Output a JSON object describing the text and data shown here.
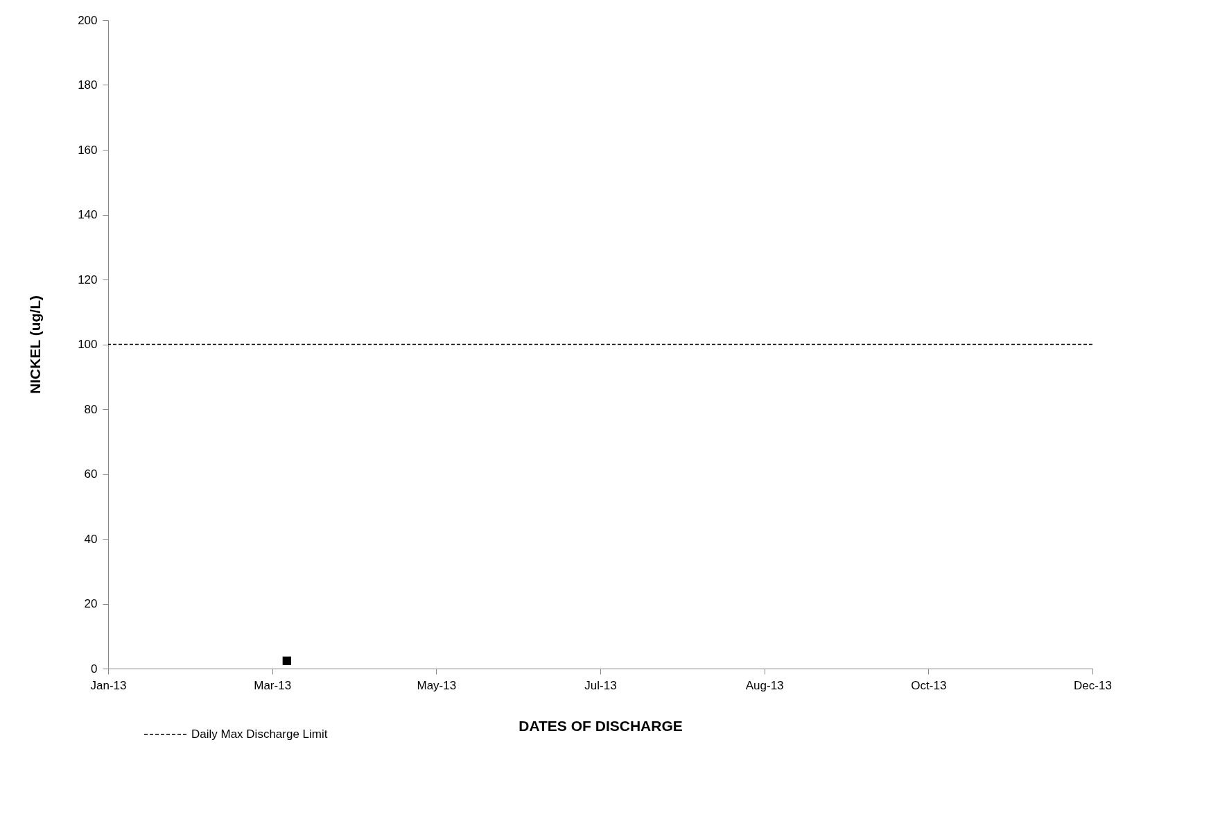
{
  "chart_data": {
    "type": "scatter",
    "xlabel": "DATES OF DISCHARGE",
    "ylabel": "NICKEL (ug/L)",
    "x": [
      "2013-03-16"
    ],
    "series": [
      {
        "color": "#000000",
        "values": [
          2.4
        ]
      }
    ],
    "marker": "square",
    "grid": false,
    "legend": "bottom left",
    "xlim": [
      "2013-01-14",
      "2013-12-16"
    ],
    "xticks": [
      {
        "value": "2013-01-14",
        "label": "Jan-13"
      },
      {
        "value": "2013-03-11",
        "label": "Mar-13"
      },
      {
        "value": "2013-05-06",
        "label": "May-13"
      },
      {
        "value": "2013-07-01",
        "label": "Jul-13"
      },
      {
        "value": "2013-08-26",
        "label": "Aug-13"
      },
      {
        "value": "2013-10-21",
        "label": "Oct-13"
      },
      {
        "value": "2013-12-16",
        "label": "Dec-13"
      }
    ],
    "ylim": [
      0,
      200
    ],
    "yticks": [
      0,
      20,
      40,
      60,
      80,
      100,
      120,
      140,
      160,
      180,
      200
    ],
    "ref_lines": [
      {
        "axis": "y",
        "value": 100,
        "label": "Daily Max Discharge Limit",
        "color": "#000000",
        "line_style": "dashed"
      }
    ]
  }
}
